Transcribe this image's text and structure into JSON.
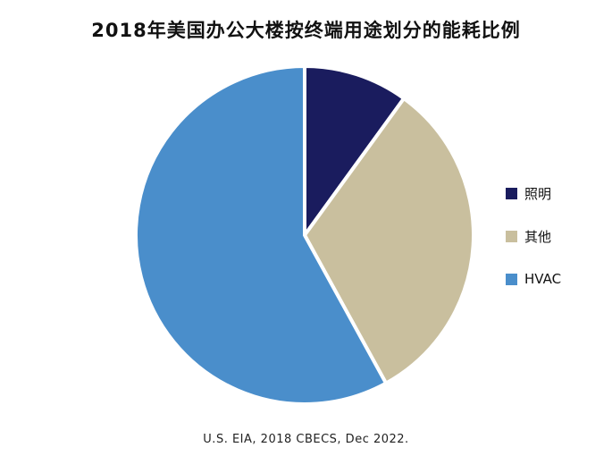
{
  "chart_data": {
    "type": "pie",
    "title": "2018年美国办公大楼按终端用途划分的能耗比例",
    "slices": [
      {
        "label": "照明",
        "value": 10,
        "color": "#1a1c5e"
      },
      {
        "label": "其他",
        "value": 32,
        "color": "#c9bf9e"
      },
      {
        "label": "HVAC",
        "value": 58,
        "color": "#4a8ecb"
      }
    ],
    "legend_position": "right",
    "source": "U.S. EIA, 2018 CBECS, Dec 2022."
  }
}
